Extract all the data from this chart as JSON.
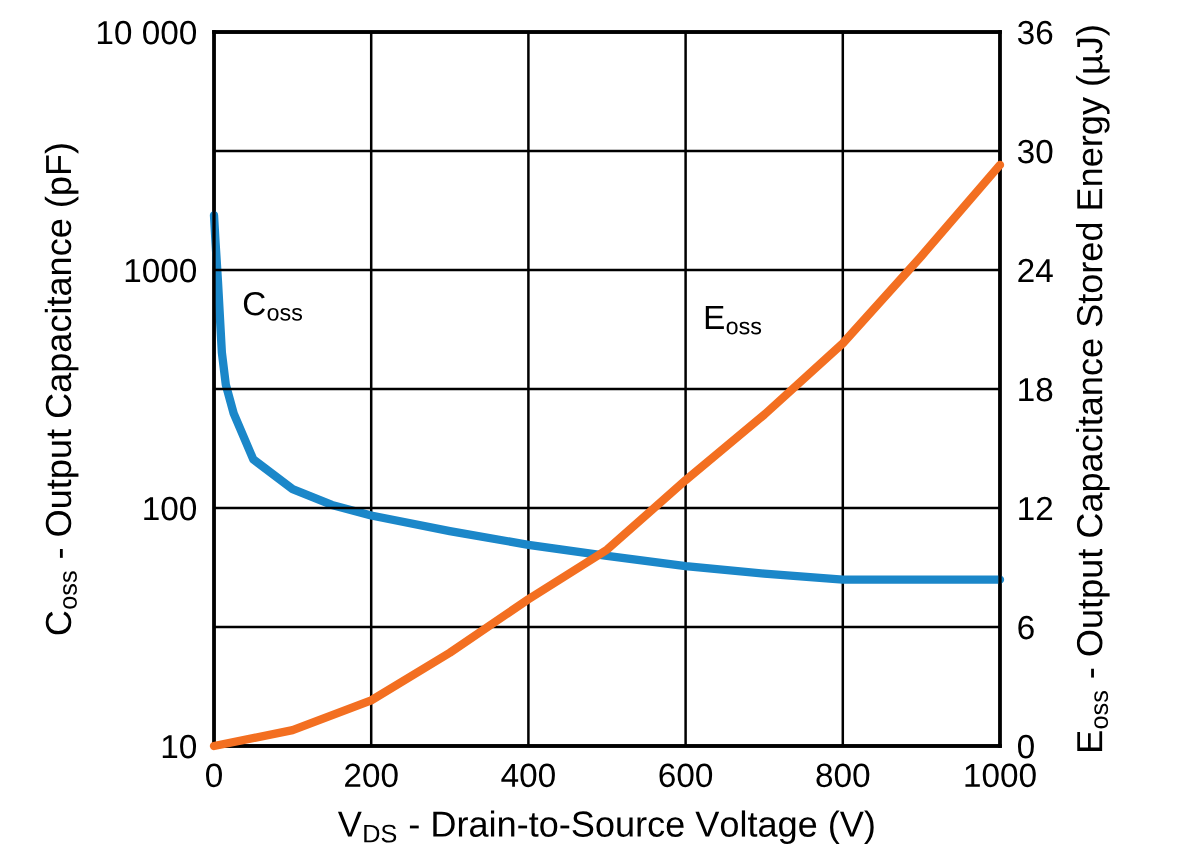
{
  "chart_data": {
    "type": "line",
    "xlabel": "V$_{DS}$ - Drain-to-Source Voltage (V)",
    "ylabel": "C$_{oss}$ - Output Capacitance (pF)",
    "y2label": "E$_{oss}$ - Output Capacitance Stored Energy (µJ)",
    "series": [
      {
        "name": "C$_{oss}$",
        "color": "#1b87c9",
        "x": [
          0,
          2,
          5,
          10,
          15,
          25,
          50,
          100,
          150,
          200,
          300,
          400,
          500,
          600,
          700,
          800,
          900,
          1000
        ],
        "values": [
          1700,
          1300,
          900,
          450,
          330,
          250,
          160,
          120,
          103,
          93,
          80,
          70,
          63,
          57,
          53,
          50,
          50,
          50
        ]
      },
      {
        "name": "E$_{oss}$",
        "axis": "y2",
        "color": "#f36f21",
        "x": [
          0,
          100,
          200,
          300,
          400,
          500,
          600,
          700,
          800,
          900,
          1000
        ],
        "values": [
          0,
          0.8,
          2.3,
          4.7,
          7.4,
          9.9,
          13.4,
          16.7,
          20.3,
          24.7,
          29.3
        ]
      }
    ],
    "log": "y",
    "xlim": [
      0,
      1000
    ],
    "xticks": [
      0,
      200,
      400,
      600,
      800,
      1000
    ],
    "ylim": [
      10,
      10000
    ],
    "yticks": [
      10,
      100,
      1000,
      {
        "value": 10000,
        "label": "10 000"
      }
    ],
    "y2lim": [
      0,
      36
    ],
    "y2ticks": [
      0,
      6,
      12,
      18,
      24,
      30,
      36
    ],
    "grid": true
  }
}
